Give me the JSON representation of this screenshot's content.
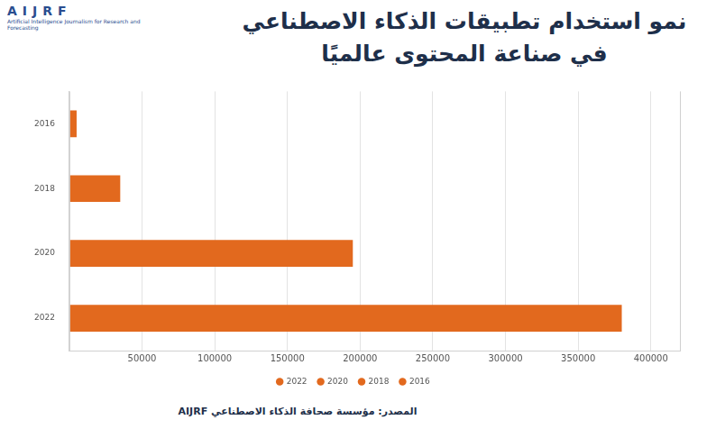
{
  "header": {
    "logo": "AIJRF",
    "logo_subtitle": "Artificial Intelligence Journalism for Research and Forecasting"
  },
  "chart_data": {
    "type": "bar",
    "orientation": "horizontal",
    "title": "نمو استخدام تطبيقات الذكاء الاصطناعي في صناعة المحتوى عالميًا",
    "categories": [
      "2016",
      "2018",
      "2020",
      "2022"
    ],
    "values": [
      5000,
      35000,
      195000,
      380000
    ],
    "color": "#e2691e",
    "xlim": [
      0,
      420000
    ],
    "xticks": [
      50000,
      100000,
      150000,
      200000,
      250000,
      300000,
      350000,
      400000
    ],
    "grid": true,
    "legend": "bottom",
    "tick_labels": true
  },
  "footer": {
    "source": "المصدر: مؤسسة صحافة الذكاء الاصطناعي AIJRF"
  }
}
